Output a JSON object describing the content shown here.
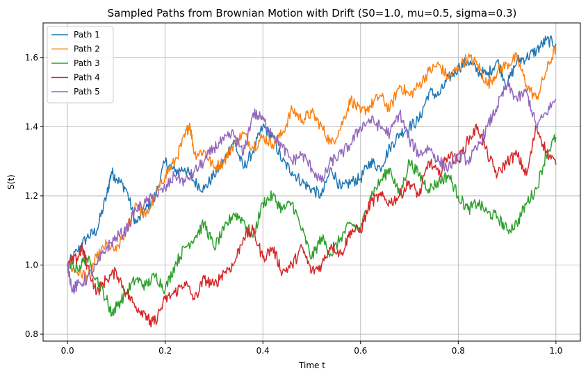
{
  "chart_data": {
    "type": "line",
    "title": "Sampled Paths from Brownian Motion with Drift (S0=1.0, mu=0.5, sigma=0.3)",
    "xlabel": "Time t",
    "ylabel": "S(t)",
    "xlim": [
      -0.05,
      1.05
    ],
    "ylim": [
      0.78,
      1.7
    ],
    "xticks": [
      0.0,
      0.2,
      0.4,
      0.6,
      0.8,
      1.0
    ],
    "xtick_labels": [
      "0.0",
      "0.2",
      "0.4",
      "0.6",
      "0.8",
      "1.0"
    ],
    "yticks": [
      0.8,
      1.0,
      1.2,
      1.4,
      1.6
    ],
    "ytick_labels": [
      "0.8",
      "1.0",
      "1.2",
      "1.4",
      "1.6"
    ],
    "grid": true,
    "legend_position": "top-left",
    "series": [
      {
        "name": "Path 1",
        "color": "#1f77b4",
        "x": [
          0.0,
          0.02,
          0.04,
          0.06,
          0.08,
          0.09,
          0.1,
          0.12,
          0.14,
          0.16,
          0.18,
          0.2,
          0.22,
          0.24,
          0.26,
          0.28,
          0.3,
          0.32,
          0.34,
          0.36,
          0.38,
          0.4,
          0.42,
          0.44,
          0.46,
          0.48,
          0.5,
          0.52,
          0.54,
          0.56,
          0.58,
          0.6,
          0.62,
          0.64,
          0.66,
          0.68,
          0.7,
          0.72,
          0.74,
          0.76,
          0.78,
          0.8,
          0.82,
          0.84,
          0.86,
          0.88,
          0.9,
          0.92,
          0.94,
          0.96,
          0.98,
          1.0
        ],
        "y": [
          1.0,
          1.04,
          1.08,
          1.1,
          1.2,
          1.27,
          1.25,
          1.22,
          1.12,
          1.16,
          1.2,
          1.3,
          1.27,
          1.28,
          1.24,
          1.22,
          1.26,
          1.3,
          1.36,
          1.28,
          1.33,
          1.4,
          1.37,
          1.3,
          1.27,
          1.24,
          1.22,
          1.2,
          1.28,
          1.22,
          1.24,
          1.25,
          1.3,
          1.28,
          1.34,
          1.38,
          1.4,
          1.42,
          1.5,
          1.49,
          1.54,
          1.57,
          1.59,
          1.56,
          1.55,
          1.59,
          1.52,
          1.59,
          1.6,
          1.62,
          1.65,
          1.64
        ]
      },
      {
        "name": "Path 2",
        "color": "#ff7f0e",
        "x": [
          0.0,
          0.02,
          0.04,
          0.06,
          0.08,
          0.1,
          0.12,
          0.14,
          0.16,
          0.18,
          0.2,
          0.22,
          0.24,
          0.25,
          0.26,
          0.28,
          0.3,
          0.32,
          0.34,
          0.36,
          0.38,
          0.4,
          0.42,
          0.44,
          0.46,
          0.48,
          0.5,
          0.52,
          0.54,
          0.56,
          0.58,
          0.6,
          0.62,
          0.64,
          0.66,
          0.68,
          0.7,
          0.72,
          0.74,
          0.76,
          0.78,
          0.8,
          0.82,
          0.84,
          0.86,
          0.88,
          0.9,
          0.92,
          0.94,
          0.96,
          0.98,
          1.0
        ],
        "y": [
          1.0,
          0.98,
          0.97,
          1.02,
          1.06,
          1.04,
          1.1,
          1.18,
          1.14,
          1.2,
          1.26,
          1.3,
          1.37,
          1.41,
          1.32,
          1.33,
          1.28,
          1.3,
          1.35,
          1.38,
          1.34,
          1.37,
          1.35,
          1.38,
          1.45,
          1.42,
          1.44,
          1.4,
          1.35,
          1.4,
          1.48,
          1.44,
          1.46,
          1.49,
          1.45,
          1.52,
          1.49,
          1.52,
          1.56,
          1.58,
          1.54,
          1.57,
          1.6,
          1.58,
          1.52,
          1.56,
          1.58,
          1.6,
          1.52,
          1.48,
          1.56,
          1.63
        ]
      },
      {
        "name": "Path 3",
        "color": "#2ca02c",
        "x": [
          0.0,
          0.02,
          0.04,
          0.06,
          0.08,
          0.09,
          0.1,
          0.12,
          0.14,
          0.16,
          0.18,
          0.2,
          0.22,
          0.24,
          0.26,
          0.28,
          0.3,
          0.32,
          0.34,
          0.36,
          0.38,
          0.4,
          0.42,
          0.44,
          0.46,
          0.48,
          0.5,
          0.52,
          0.54,
          0.56,
          0.58,
          0.6,
          0.62,
          0.64,
          0.66,
          0.68,
          0.7,
          0.72,
          0.74,
          0.76,
          0.78,
          0.8,
          0.82,
          0.84,
          0.86,
          0.88,
          0.9,
          0.92,
          0.94,
          0.96,
          0.98,
          1.0
        ],
        "y": [
          1.0,
          0.99,
          1.02,
          0.96,
          0.9,
          0.86,
          0.88,
          0.92,
          0.96,
          0.94,
          0.97,
          0.93,
          1.0,
          1.05,
          1.08,
          1.12,
          1.05,
          1.1,
          1.15,
          1.13,
          1.08,
          1.18,
          1.2,
          1.16,
          1.18,
          1.1,
          1.02,
          1.08,
          1.03,
          1.08,
          1.12,
          1.1,
          1.2,
          1.24,
          1.28,
          1.2,
          1.3,
          1.26,
          1.22,
          1.24,
          1.26,
          1.2,
          1.16,
          1.18,
          1.15,
          1.14,
          1.1,
          1.12,
          1.18,
          1.22,
          1.32,
          1.37
        ]
      },
      {
        "name": "Path 4",
        "color": "#d62728",
        "x": [
          0.0,
          0.02,
          0.03,
          0.04,
          0.06,
          0.08,
          0.1,
          0.12,
          0.14,
          0.16,
          0.17,
          0.18,
          0.2,
          0.22,
          0.24,
          0.26,
          0.28,
          0.3,
          0.32,
          0.34,
          0.36,
          0.38,
          0.4,
          0.42,
          0.44,
          0.46,
          0.48,
          0.5,
          0.52,
          0.54,
          0.56,
          0.58,
          0.6,
          0.62,
          0.64,
          0.66,
          0.68,
          0.7,
          0.72,
          0.74,
          0.76,
          0.78,
          0.8,
          0.82,
          0.84,
          0.86,
          0.88,
          0.9,
          0.92,
          0.94,
          0.96,
          0.98,
          1.0
        ],
        "y": [
          1.0,
          1.02,
          1.05,
          1.0,
          0.92,
          0.96,
          0.98,
          0.92,
          0.88,
          0.86,
          0.83,
          0.84,
          0.9,
          0.92,
          0.95,
          0.9,
          0.96,
          0.94,
          0.98,
          1.0,
          1.08,
          1.1,
          1.02,
          1.05,
          0.98,
          1.0,
          1.05,
          0.98,
          1.0,
          1.06,
          1.03,
          1.1,
          1.1,
          1.18,
          1.2,
          1.18,
          1.2,
          1.24,
          1.2,
          1.3,
          1.26,
          1.32,
          1.3,
          1.36,
          1.4,
          1.32,
          1.26,
          1.3,
          1.32,
          1.26,
          1.4,
          1.33,
          1.29
        ]
      },
      {
        "name": "Path 5",
        "color": "#9467bd",
        "x": [
          0.0,
          0.01,
          0.02,
          0.04,
          0.06,
          0.08,
          0.1,
          0.12,
          0.14,
          0.16,
          0.18,
          0.2,
          0.22,
          0.24,
          0.26,
          0.28,
          0.3,
          0.32,
          0.34,
          0.36,
          0.38,
          0.4,
          0.42,
          0.44,
          0.46,
          0.48,
          0.5,
          0.52,
          0.54,
          0.56,
          0.58,
          0.6,
          0.62,
          0.64,
          0.66,
          0.68,
          0.7,
          0.72,
          0.74,
          0.76,
          0.78,
          0.8,
          0.82,
          0.84,
          0.86,
          0.88,
          0.9,
          0.92,
          0.94,
          0.96,
          0.98,
          1.0
        ],
        "y": [
          1.0,
          0.93,
          0.94,
          0.96,
          1.0,
          1.05,
          1.08,
          1.1,
          1.16,
          1.18,
          1.2,
          1.22,
          1.26,
          1.24,
          1.27,
          1.3,
          1.34,
          1.36,
          1.38,
          1.32,
          1.44,
          1.42,
          1.38,
          1.34,
          1.3,
          1.32,
          1.28,
          1.24,
          1.3,
          1.32,
          1.35,
          1.4,
          1.42,
          1.4,
          1.38,
          1.44,
          1.36,
          1.32,
          1.34,
          1.3,
          1.28,
          1.32,
          1.3,
          1.34,
          1.4,
          1.46,
          1.52,
          1.48,
          1.5,
          1.4,
          1.44,
          1.48
        ]
      }
    ]
  }
}
